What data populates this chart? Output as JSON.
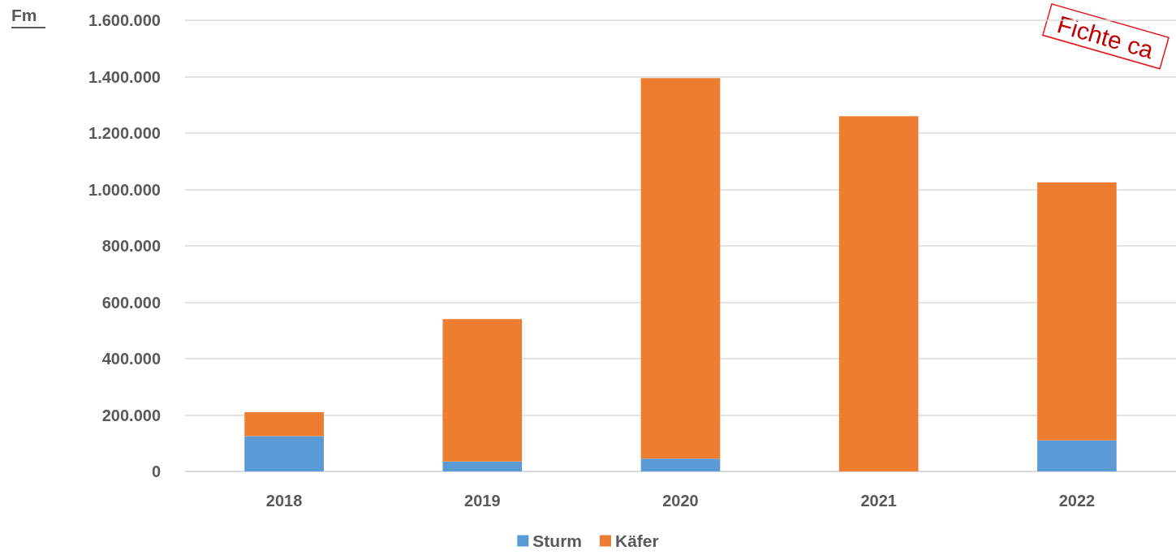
{
  "chart_data": {
    "type": "bar",
    "ylabel": "Fm",
    "stacked": true,
    "categories": [
      "2018",
      "2019",
      "2020",
      "2021",
      "2022"
    ],
    "series": [
      {
        "name": "Sturm",
        "color": "#5b9bd5",
        "values": [
          125000,
          35000,
          45000,
          0,
          110000
        ]
      },
      {
        "name": "Käfer",
        "color": "#ed7d31",
        "values": [
          85000,
          505000,
          1350000,
          1260000,
          915000
        ]
      }
    ],
    "ylim": [
      0,
      1600000
    ],
    "yticks": [
      0,
      {
        "value": 200000,
        "label": "200.000"
      },
      {
        "value": 400000,
        "label": "400.000"
      },
      {
        "value": 600000,
        "label": "600.000"
      },
      {
        "value": 800000,
        "label": "800.000"
      },
      {
        "value": 1000000,
        "label": "1.000.000"
      },
      {
        "value": 1200000,
        "label": "1.200.000"
      },
      {
        "value": 1400000,
        "label": "1.400.000"
      },
      {
        "value": 1600000,
        "label": "1.600.000"
      }
    ],
    "grid": "y",
    "legend": "bottom",
    "annotations": [
      "Fichte ca"
    ]
  }
}
